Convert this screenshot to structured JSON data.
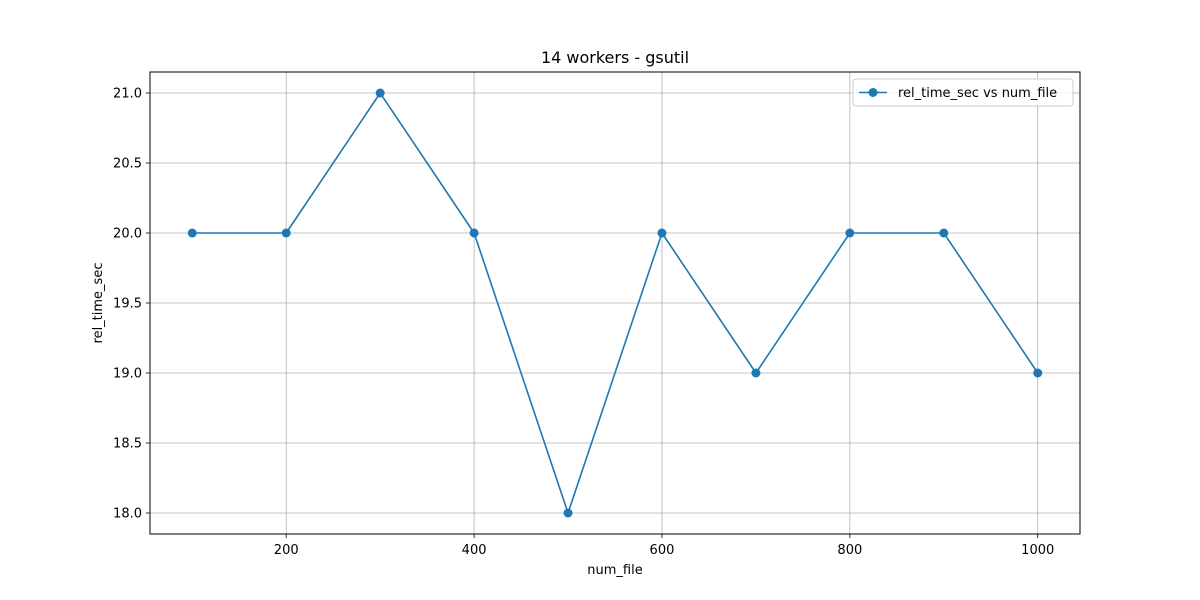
{
  "chart_data": {
    "type": "line",
    "title": "14 workers - gsutil",
    "xlabel": "num_file",
    "ylabel": "rel_time_sec",
    "x": [
      100,
      200,
      300,
      400,
      500,
      600,
      700,
      800,
      900,
      1000
    ],
    "series": [
      {
        "name": "rel_time_sec vs num_file",
        "values": [
          20.0,
          20.0,
          21.0,
          20.0,
          18.0,
          20.0,
          19.0,
          20.0,
          20.0,
          19.0
        ],
        "color": "#1f77b4",
        "marker": "circle"
      }
    ],
    "xlim": [
      55,
      1045
    ],
    "ylim": [
      17.85,
      21.15
    ],
    "xticks": [
      200,
      400,
      600,
      800,
      1000
    ],
    "xtick_labels": [
      "200",
      "400",
      "600",
      "800",
      "1000"
    ],
    "yticks": [
      18.0,
      18.5,
      19.0,
      19.5,
      20.0,
      20.5,
      21.0
    ],
    "ytick_labels": [
      "18.0",
      "18.5",
      "19.0",
      "19.5",
      "20.0",
      "20.5",
      "21.0"
    ],
    "grid": true,
    "legend_position": "top-right"
  },
  "colors": {
    "series": "#1f77b4",
    "grid": "#b0b0b0",
    "axes": "#000000",
    "background": "#ffffff"
  }
}
